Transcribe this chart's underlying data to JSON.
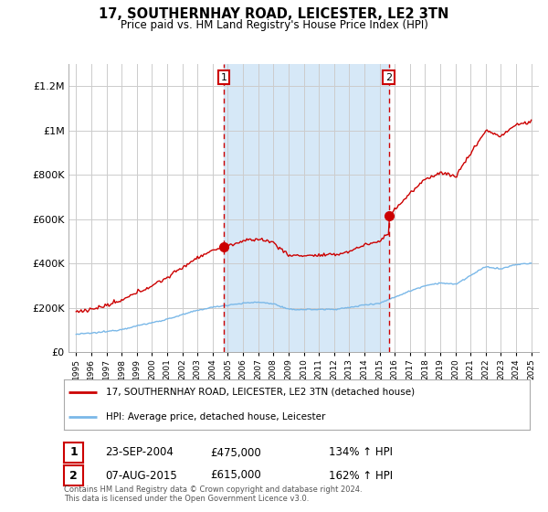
{
  "title": "17, SOUTHERNHAY ROAD, LEICESTER, LE2 3TN",
  "subtitle": "Price paid vs. HM Land Registry's House Price Index (HPI)",
  "ylim": [
    0,
    1300000
  ],
  "yticks": [
    0,
    200000,
    400000,
    600000,
    800000,
    1000000,
    1200000
  ],
  "ytick_labels": [
    "£0",
    "£200K",
    "£400K",
    "£600K",
    "£800K",
    "£1M",
    "£1.2M"
  ],
  "sale1_date": 2004.73,
  "sale1_price": 475000,
  "sale2_date": 2015.6,
  "sale2_price": 615000,
  "legend_line1": "17, SOUTHERNHAY ROAD, LEICESTER, LE2 3TN (detached house)",
  "legend_line2": "HPI: Average price, detached house, Leicester",
  "table_row1": [
    "1",
    "23-SEP-2004",
    "£475,000",
    "134% ↑ HPI"
  ],
  "table_row2": [
    "2",
    "07-AUG-2015",
    "£615,000",
    "162% ↑ HPI"
  ],
  "footnote": "Contains HM Land Registry data © Crown copyright and database right 2024.\nThis data is licensed under the Open Government Licence v3.0.",
  "hpi_color": "#7ab8e8",
  "price_color": "#cc0000",
  "shade_color": "#d6e8f7",
  "grid_color": "#cccccc",
  "background_color": "#ffffff"
}
